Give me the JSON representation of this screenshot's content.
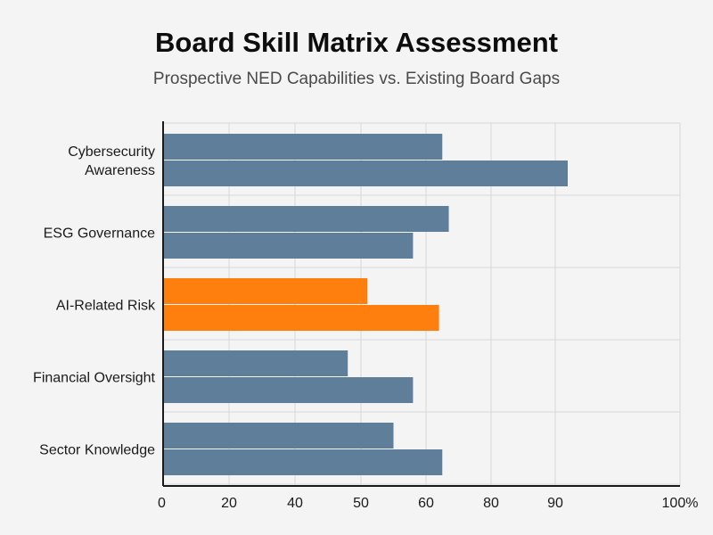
{
  "chart_data": {
    "type": "bar",
    "orientation": "horizontal",
    "title": "Board Skill Matrix Assessment",
    "subtitle": "Prospective NED Capabilities vs. Existing Board Gaps",
    "categories": [
      [
        "Cybersecurity",
        "Awareness"
      ],
      [
        "ESG Governance"
      ],
      [
        "AI-Related Risk"
      ],
      [
        "Financial Oversight"
      ],
      [
        "Sector Knowledge"
      ]
    ],
    "series": [
      {
        "values": [
          65,
          67,
          51,
          48,
          55
        ]
      },
      {
        "values": [
          91,
          58,
          64,
          58,
          65
        ]
      }
    ],
    "highlight_category_index": 2,
    "x_ticks": [
      "0",
      "20",
      "40",
      "50",
      "60",
      "80",
      "90",
      "100%"
    ],
    "grid": true,
    "colors": {
      "bar": "#5e7e99",
      "highlight": "#ff7f0e",
      "grid": "#d8d8d8",
      "axis": "#1a1a1a"
    }
  }
}
